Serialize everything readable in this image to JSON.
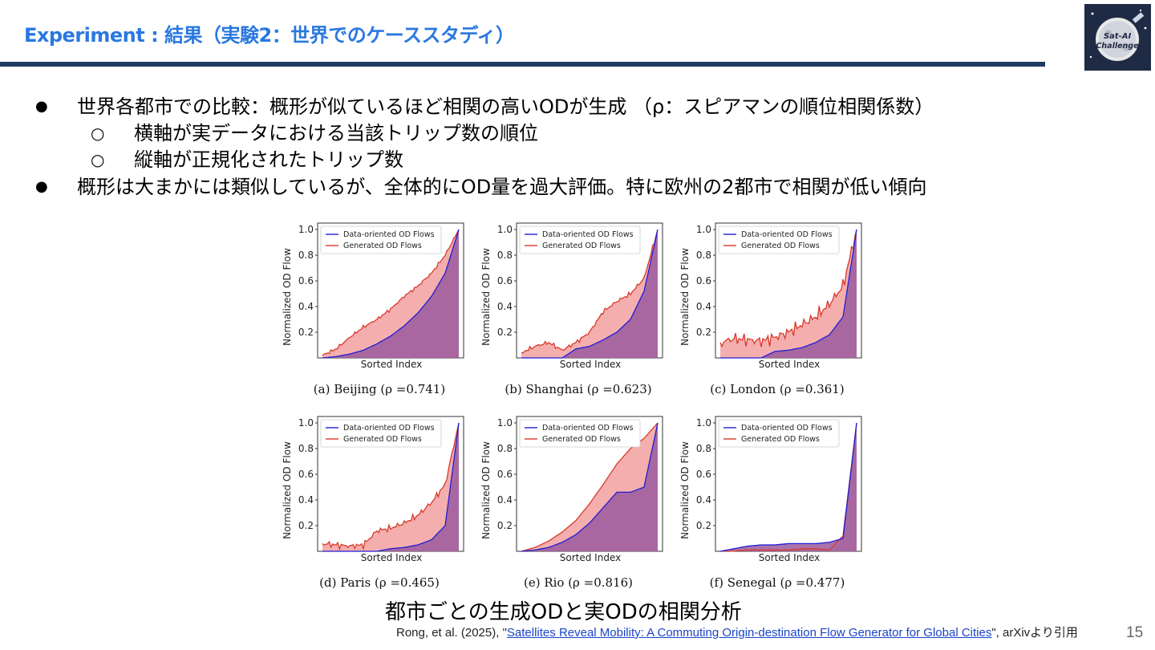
{
  "header": {
    "title": "Experiment : 結果（実験2：世界でのケーススタディ）",
    "logo_text": "Sat-AI Challenge"
  },
  "bullets": [
    {
      "text": "世界各都市での比較：概形が似ているほど相関の高いODが生成 （ρ：スピアマンの順位相関係数）",
      "sub": [
        "横軸が実データにおける当該トリップ数の順位",
        "縦軸が正規化されたトリップ数"
      ]
    },
    {
      "text": "概形は大まかには類似しているが、全体的にOD量を過大評価。特に欧州の2都市で相関が低い傾向"
    }
  ],
  "bullet_markers": {
    "main": "●",
    "sub": "○"
  },
  "figure": {
    "caption": "都市ごとの生成ODと実ODの相関分析"
  },
  "chart_data": [
    {
      "type": "area",
      "title": "(a) Beijing (ρ =0.741)",
      "city": "Beijing",
      "rho": 0.741,
      "xlabel": "Sorted Index",
      "ylabel": "Normalized OD Flow",
      "ylim": [
        0,
        1.05
      ],
      "yticks": [
        "0.2",
        "0.4",
        "0.6",
        "0.8",
        "1.0"
      ],
      "legend": [
        "Data-oriented OD Flows",
        "Generated OD Flows"
      ],
      "legend_position": "top-left",
      "x": [
        0,
        0.1,
        0.2,
        0.3,
        0.4,
        0.5,
        0.6,
        0.7,
        0.8,
        0.9,
        1.0
      ],
      "series": [
        {
          "name": "Data-oriented OD Flows",
          "values": [
            0,
            0.01,
            0.03,
            0.06,
            0.11,
            0.17,
            0.25,
            0.35,
            0.48,
            0.66,
            1.0
          ]
        },
        {
          "name": "Generated OD Flows",
          "values": [
            0.02,
            0.07,
            0.16,
            0.24,
            0.3,
            0.38,
            0.48,
            0.56,
            0.66,
            0.8,
            1.0
          ]
        }
      ]
    },
    {
      "type": "area",
      "title": "(b) Shanghai (ρ =0.623)",
      "city": "Shanghai",
      "rho": 0.623,
      "xlabel": "Sorted Index",
      "ylabel": "Normalized OD Flow",
      "ylim": [
        0,
        1.05
      ],
      "yticks": [
        "0.2",
        "0.4",
        "0.6",
        "0.8",
        "1.0"
      ],
      "legend": [
        "Data-oriented OD Flows",
        "Generated OD Flows"
      ],
      "legend_position": "top-left",
      "x": [
        0,
        0.1,
        0.2,
        0.3,
        0.4,
        0.5,
        0.6,
        0.7,
        0.8,
        0.9,
        1.0
      ],
      "series": [
        {
          "name": "Data-oriented OD Flows",
          "values": [
            0,
            0,
            0,
            0,
            0.07,
            0.09,
            0.14,
            0.2,
            0.3,
            0.52,
            1.0
          ]
        },
        {
          "name": "Generated OD Flows",
          "values": [
            0.04,
            0.09,
            0.12,
            0.06,
            0.12,
            0.2,
            0.36,
            0.44,
            0.5,
            0.62,
            1.0
          ]
        }
      ]
    },
    {
      "type": "area",
      "title": "(c) London (ρ =0.361)",
      "city": "London",
      "rho": 0.361,
      "xlabel": "Sorted Index",
      "ylabel": "Normalized OD Flow",
      "ylim": [
        0,
        1.05
      ],
      "yticks": [
        "0.2",
        "0.4",
        "0.6",
        "0.8",
        "1.0"
      ],
      "legend": [
        "Data-oriented OD Flows",
        "Generated OD Flows"
      ],
      "legend_position": "top-left",
      "x": [
        0,
        0.1,
        0.2,
        0.3,
        0.4,
        0.5,
        0.6,
        0.7,
        0.8,
        0.9,
        1.0
      ],
      "series": [
        {
          "name": "Data-oriented OD Flows",
          "values": [
            0,
            0,
            0,
            0,
            0.05,
            0.06,
            0.08,
            0.12,
            0.18,
            0.32,
            1.0
          ]
        },
        {
          "name": "Generated OD Flows",
          "values": [
            0.12,
            0.15,
            0.14,
            0.13,
            0.16,
            0.2,
            0.26,
            0.32,
            0.42,
            0.56,
            1.0
          ]
        }
      ]
    },
    {
      "type": "area",
      "title": "(d) Paris (ρ =0.465)",
      "city": "Paris",
      "rho": 0.465,
      "xlabel": "Sorted Index",
      "ylabel": "Normalized OD Flow",
      "ylim": [
        0,
        1.05
      ],
      "yticks": [
        "0.2",
        "0.4",
        "0.6",
        "0.8",
        "1.0"
      ],
      "legend": [
        "Data-oriented OD Flows",
        "Generated OD Flows"
      ],
      "legend_position": "top-left",
      "x": [
        0,
        0.1,
        0.2,
        0.3,
        0.4,
        0.5,
        0.6,
        0.7,
        0.8,
        0.9,
        1.0
      ],
      "series": [
        {
          "name": "Data-oriented OD Flows",
          "values": [
            0,
            0,
            0,
            0,
            0,
            0.02,
            0.03,
            0.05,
            0.09,
            0.2,
            1.0
          ]
        },
        {
          "name": "Generated OD Flows",
          "values": [
            0.06,
            0.05,
            0.04,
            0.05,
            0.16,
            0.18,
            0.22,
            0.28,
            0.38,
            0.52,
            1.0
          ]
        }
      ]
    },
    {
      "type": "area",
      "title": "(e) Rio (ρ =0.816)",
      "city": "Rio",
      "rho": 0.816,
      "xlabel": "Sorted Index",
      "ylabel": "Normalized OD Flow",
      "ylim": [
        0,
        1.05
      ],
      "yticks": [
        "0.2",
        "0.4",
        "0.6",
        "0.8",
        "1.0"
      ],
      "legend": [
        "Data-oriented OD Flows",
        "Generated OD Flows"
      ],
      "legend_position": "top-left",
      "x": [
        0,
        0.1,
        0.2,
        0.3,
        0.4,
        0.5,
        0.6,
        0.7,
        0.8,
        0.9,
        1.0
      ],
      "series": [
        {
          "name": "Data-oriented OD Flows",
          "values": [
            0,
            0.01,
            0.03,
            0.07,
            0.13,
            0.22,
            0.34,
            0.46,
            0.46,
            0.5,
            1.0
          ]
        },
        {
          "name": "Generated OD Flows",
          "values": [
            0,
            0.03,
            0.08,
            0.15,
            0.24,
            0.37,
            0.52,
            0.68,
            0.8,
            0.88,
            1.0
          ]
        }
      ]
    },
    {
      "type": "area",
      "title": "(f) Senegal (ρ =0.477)",
      "city": "Senegal",
      "rho": 0.477,
      "xlabel": "Sorted Index",
      "ylabel": "Normalized OD Flow",
      "ylim": [
        0,
        1.05
      ],
      "yticks": [
        "0.2",
        "0.4",
        "0.6",
        "0.8",
        "1.0"
      ],
      "legend": [
        "Data-oriented OD Flows",
        "Generated OD Flows"
      ],
      "legend_position": "top-left",
      "x": [
        0,
        0.1,
        0.2,
        0.3,
        0.4,
        0.5,
        0.6,
        0.7,
        0.8,
        0.9,
        1.0
      ],
      "series": [
        {
          "name": "Data-oriented OD Flows",
          "values": [
            0,
            0.02,
            0.04,
            0.05,
            0.05,
            0.06,
            0.06,
            0.06,
            0.07,
            0.1,
            1.0
          ]
        },
        {
          "name": "Generated OD Flows",
          "values": [
            0,
            0,
            0.01,
            0.01,
            0.01,
            0.01,
            0.02,
            0.02,
            0.01,
            0.12,
            1.0
          ]
        }
      ]
    }
  ],
  "colors": {
    "title": "#2a78e0",
    "rule": "#1e3a5f",
    "data_line": "#1f1fd6",
    "generated_line": "#d93a2b",
    "generated_fill": "#f2a0a0",
    "overlap_fill": "#9a5a9e"
  },
  "citation": {
    "prefix": "Rong, et al. (2025), \"",
    "link": "Satellites Reveal Mobility: A Commuting Origin-destination Flow Generator for Global Cities",
    "suffix": "\", arXivより引用"
  },
  "page_number": "15"
}
